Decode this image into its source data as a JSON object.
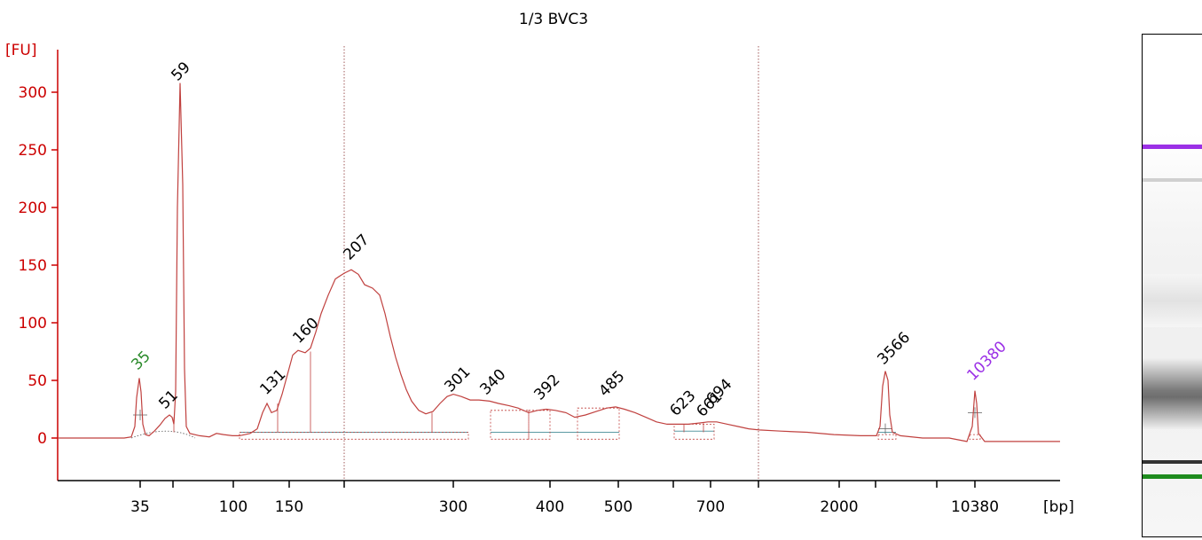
{
  "colors": {
    "trace": "#c0413f",
    "axis": "#cc0000",
    "lower_marker": "#2a8a2a",
    "upper_marker": "#9b30e6",
    "baseline": "#5b9aa3",
    "label": "#000000"
  },
  "chart_data": {
    "type": "line",
    "title": "1/3 BVC3",
    "ylabel": "[FU]",
    "xlabel": "[bp]",
    "ylim": [
      -38,
      340
    ],
    "y_ticks": [
      0,
      50,
      100,
      150,
      200,
      250,
      300
    ],
    "y_tick_labels": [
      "0",
      "50",
      "100",
      "150",
      "200",
      "250",
      "300"
    ],
    "x_ticks": [
      "35",
      "",
      "100",
      "150",
      "",
      "300",
      "400",
      "500",
      "",
      "700",
      "",
      "2000",
      "",
      "",
      "10380"
    ],
    "x_tick_labels": [
      "35",
      "100",
      "150",
      "300",
      "400",
      "500",
      "700",
      "2000",
      "10380",
      "[bp]"
    ],
    "grid": false,
    "series": [
      {
        "peaks": [
          {
            "label": "35",
            "height": 52,
            "color": "lower_marker"
          },
          {
            "label": "51",
            "height": 20
          },
          {
            "label": "59",
            "height": 308
          },
          {
            "label": "131",
            "height": 30
          },
          {
            "label": "160",
            "height": 75
          },
          {
            "label": "207",
            "height": 146
          },
          {
            "label": "301",
            "height": 38
          },
          {
            "label": "340",
            "height": 33
          },
          {
            "label": "392",
            "height": 25
          },
          {
            "label": "485",
            "height": 27
          },
          {
            "label": "623",
            "height": 12
          },
          {
            "label": "661",
            "height": 13
          },
          {
            "label": "694",
            "height": 14
          },
          {
            "label": "3566",
            "height": 58
          },
          {
            "label": "10380",
            "height": 41,
            "color": "upper_marker"
          }
        ]
      }
    ]
  },
  "gel": {
    "upper_marker_color": "#9b30e6",
    "lower_marker_color": "#1e8c1e"
  }
}
